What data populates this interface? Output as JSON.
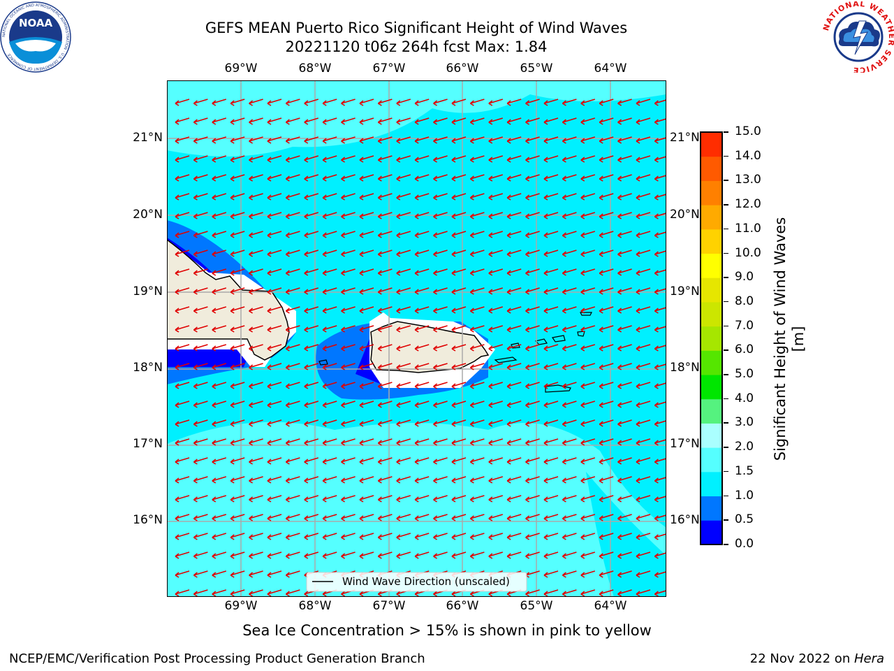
{
  "header": {
    "title_line1": "GEFS MEAN Puerto Rico Significant Height of Wind Waves",
    "title_line2": "20221120 t06z 264h fcst   Max: 1.84"
  },
  "logos": {
    "noaa_text": "NOAA",
    "noaa_ring_text": "NATIONAL OCEANIC AND ATMOSPHERIC ADMINISTRATION · U.S. DEPARTMENT OF COMMERCE",
    "nws_ring_text": "NATIONAL WEATHER SERVICE"
  },
  "map": {
    "lon_labels": [
      "69°W",
      "68°W",
      "67°W",
      "66°W",
      "65°W",
      "64°W"
    ],
    "lat_labels": [
      "21°N",
      "20°N",
      "19°N",
      "18°N",
      "17°N",
      "16°N"
    ],
    "legend_label": "Wind Wave Direction (unscaled)",
    "extent": {
      "lon_min": -70.0,
      "lon_max": -63.25,
      "lat_min": 15.0,
      "lat_max": 21.75
    },
    "wave_direction": "westward, slightly southward"
  },
  "colorbar": {
    "title": "Significant Height of Wind Waves [m]",
    "tick_labels": [
      "0.0",
      "0.5",
      "1.0",
      "1.5",
      "2.0",
      "3.0",
      "4.0",
      "5.0",
      "6.0",
      "7.0",
      "8.0",
      "9.0",
      "10.0",
      "11.0",
      "12.0",
      "13.0",
      "14.0",
      "15.0"
    ],
    "colors": [
      "#0000ff",
      "#0077ff",
      "#00f0ff",
      "#55ffff",
      "#aaffff",
      "#55f27f",
      "#00e600",
      "#55e600",
      "#a6e600",
      "#cce600",
      "#e6e600",
      "#ffff00",
      "#ffd200",
      "#ffaa00",
      "#ff8000",
      "#ff5a00",
      "#ff2d00"
    ]
  },
  "fill_colors": {
    "ocean_main": "#00f0ff",
    "ocean_light": "#55ffff",
    "low_band": "#0077ff",
    "lowest_band": "#0000ff",
    "land": "#f0ecdc",
    "arrow": "#e00000"
  },
  "caption": "Sea Ice Concentration > 15% is shown in pink to yellow",
  "footer": {
    "left": "NCEP/EMC/Verification Post Processing Product Generation Branch",
    "right_prefix": "22 Nov 2022 on ",
    "right_host": "Hera"
  }
}
